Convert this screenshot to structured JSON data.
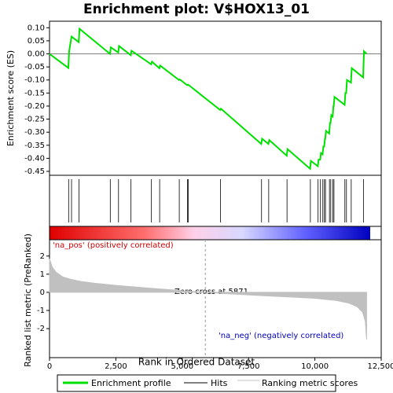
{
  "chart_data": [
    {
      "type": "line",
      "title": "Enrichment plot: V$HOX13_01",
      "ylabel": "Enrichment score (ES)",
      "ylim": [
        -0.465,
        0.125
      ],
      "yticks": [
        {
          "value": 0.1,
          "label": "0.10"
        },
        {
          "value": 0.05,
          "label": "0.05"
        },
        {
          "value": 0,
          "label": "0.00"
        },
        {
          "value": -0.05,
          "label": "-0.05"
        },
        {
          "value": -0.1,
          "label": "-0.10"
        },
        {
          "value": -0.15,
          "label": "-0.15"
        },
        {
          "value": -0.2,
          "label": "-0.20"
        },
        {
          "value": -0.25,
          "label": "-0.25"
        },
        {
          "value": -0.3,
          "label": "-0.30"
        },
        {
          "value": -0.35,
          "label": "-0.35"
        },
        {
          "value": -0.4,
          "label": "-0.40"
        },
        {
          "value": -0.45,
          "label": "-0.45"
        }
      ],
      "series": [
        {
          "name": "Enrichment profile",
          "color": "#00e000",
          "x": [
            0,
            710,
            740,
            830,
            1100,
            1130,
            2280,
            2310,
            2590,
            2620,
            3060,
            3090,
            3830,
            3860,
            4140,
            4170,
            4880,
            4910,
            5190,
            5220,
            5250,
            6430,
            6460,
            7980,
            8010,
            8250,
            8280,
            8940,
            8970,
            9820,
            9850,
            10110,
            10140,
            10200,
            10230,
            10290,
            10320,
            10350,
            10380,
            10390,
            10420,
            10540,
            10570,
            10590,
            10620,
            10670,
            10700,
            10710,
            10740,
            11120,
            11150,
            11180,
            11210,
            11360,
            11390,
            11820,
            11850,
            11950
          ],
          "values": [
            0,
            -0.054,
            0.01,
            0.066,
            0.045,
            0.096,
            0.0,
            0.025,
            0.005,
            0.03,
            -0.005,
            0.012,
            -0.04,
            -0.03,
            -0.055,
            -0.045,
            -0.1,
            -0.098,
            -0.12,
            -0.118,
            -0.12,
            -0.215,
            -0.21,
            -0.345,
            -0.325,
            -0.345,
            -0.33,
            -0.39,
            -0.365,
            -0.44,
            -0.41,
            -0.43,
            -0.405,
            -0.405,
            -0.38,
            -0.385,
            -0.355,
            -0.355,
            -0.325,
            -0.325,
            -0.295,
            -0.305,
            -0.265,
            -0.265,
            -0.235,
            -0.24,
            -0.2,
            -0.2,
            -0.165,
            -0.195,
            -0.15,
            -0.15,
            -0.1,
            -0.11,
            -0.055,
            -0.09,
            0.01,
            0.0
          ]
        },
        {
          "name": "Hits",
          "color": "#000000",
          "x": [
            720,
            830,
            1110,
            2290,
            2600,
            3070,
            3840,
            4150,
            4890,
            5200,
            5230,
            6440,
            7990,
            8260,
            8950,
            9830,
            10120,
            10210,
            10300,
            10360,
            10400,
            10550,
            10600,
            10680,
            10720,
            11130,
            11190,
            11370,
            11830
          ]
        }
      ]
    },
    {
      "type": "area",
      "ylabel": "Ranked list metric (PreRanked)",
      "xlabel": "Rank in Ordered Dataset",
      "xlim": [
        0,
        12500
      ],
      "xticks": [
        0,
        {
          "value": 2500,
          "label": "2,500"
        },
        {
          "value": 5000,
          "label": "5,000"
        },
        {
          "value": 7500,
          "label": "7,500"
        },
        {
          "value": 10000,
          "label": "10,000"
        },
        {
          "value": 12500,
          "label": "12,500"
        }
      ],
      "ylim": [
        -3.6,
        2.9
      ],
      "yticks": [
        2,
        1,
        0,
        -1,
        -2
      ],
      "zero_cross": 5871,
      "annotations": [
        "'na_pos' (positively correlated)",
        "Zero cross at 5871",
        "'na_neg' (negatively correlated)"
      ],
      "series": [
        {
          "name": "Ranking metric scores",
          "color": "#c0c0c0",
          "x": [
            0,
            100,
            250,
            500,
            800,
            1200,
            1700,
            2500,
            3500,
            4500,
            5871,
            7000,
            8000,
            9000,
            10000,
            10800,
            11300,
            11600,
            11800,
            11900,
            11950
          ],
          "values": [
            1.85,
            1.4,
            1.1,
            0.85,
            0.72,
            0.6,
            0.5,
            0.38,
            0.26,
            0.15,
            0,
            -0.1,
            -0.18,
            -0.25,
            -0.33,
            -0.45,
            -0.6,
            -0.8,
            -1.1,
            -1.6,
            -2.6
          ]
        }
      ]
    }
  ]
}
